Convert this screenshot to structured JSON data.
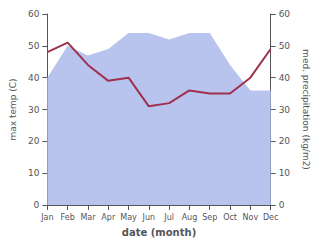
{
  "chart_data": {
    "type": "line",
    "xlabel": "date (month)",
    "ylabel": "max temp (C)",
    "y2label": "med. precipitation (kg/m2)",
    "categories": [
      "Jan",
      "Feb",
      "Mar",
      "Apr",
      "May",
      "Jun",
      "Jul",
      "Aug",
      "Sep",
      "Oct",
      "Nov",
      "Dec"
    ],
    "series": [
      {
        "type": "area",
        "axis": "y2",
        "color": "#b8c4ee",
        "values": [
          40,
          50,
          47,
          49,
          54,
          54,
          52,
          54,
          54,
          44,
          36,
          36
        ]
      },
      {
        "type": "line",
        "color": "#a03050",
        "values": [
          48,
          51,
          44,
          39,
          40,
          31,
          32,
          36,
          35,
          35,
          40,
          49
        ]
      }
    ],
    "ylim": [
      0,
      60
    ],
    "yticks": [
      0,
      10,
      20,
      30,
      40,
      50,
      60
    ],
    "y2lim": [
      0,
      60
    ],
    "y2ticks": [
      0,
      10,
      20,
      30,
      40,
      50,
      60
    ],
    "grid": false
  }
}
